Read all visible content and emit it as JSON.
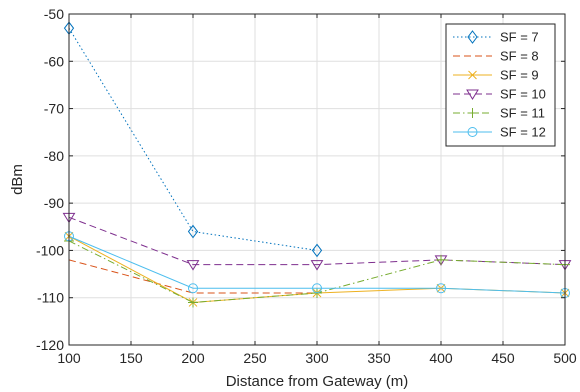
{
  "chart_data": {
    "type": "line",
    "title": "",
    "xlabel": "Distance from Gateway (m)",
    "ylabel": "dBm",
    "xlim": [
      100,
      500
    ],
    "ylim": [
      -120,
      -50
    ],
    "xticks": [
      100,
      150,
      200,
      250,
      300,
      350,
      400,
      450,
      500
    ],
    "yticks": [
      -50,
      -60,
      -70,
      -80,
      -90,
      -100,
      -110,
      -120
    ],
    "grid": true,
    "legend_position": "top-right",
    "series": [
      {
        "name": "SF = 7",
        "color": "#0072BD",
        "marker": "diamond",
        "dash": "dotted",
        "x": [
          100,
          200,
          300
        ],
        "y": [
          -53,
          -96,
          -100
        ]
      },
      {
        "name": "SF = 8",
        "color": "#D95319",
        "marker": "none",
        "dash": "dashed",
        "x": [
          100,
          200,
          300
        ],
        "y": [
          -102,
          -109,
          -109
        ]
      },
      {
        "name": "SF = 9",
        "color": "#EDB120",
        "marker": "x",
        "dash": "solid",
        "x": [
          100,
          200,
          300,
          400,
          500
        ],
        "y": [
          -97,
          -111,
          -109,
          -108,
          -109
        ]
      },
      {
        "name": "SF = 10",
        "color": "#7E2F8E",
        "marker": "triangle",
        "dash": "dashed",
        "x": [
          100,
          200,
          300,
          400,
          500
        ],
        "y": [
          -93,
          -103,
          -103,
          -102,
          -103
        ]
      },
      {
        "name": "SF = 11",
        "color": "#77AC30",
        "marker": "plus",
        "dash": "dashdot",
        "x": [
          100,
          200,
          300,
          400,
          500
        ],
        "y": [
          -98,
          -111,
          -109,
          -102,
          -103
        ]
      },
      {
        "name": "SF = 12",
        "color": "#4DBEEE",
        "marker": "circle",
        "dash": "solid",
        "x": [
          100,
          200,
          300,
          400,
          500
        ],
        "y": [
          -97,
          -108,
          -108,
          -108,
          -109
        ]
      }
    ]
  }
}
